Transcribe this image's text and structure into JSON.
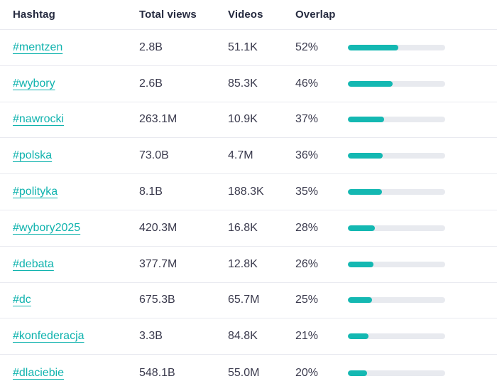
{
  "accent_color": "#14b8b2",
  "track_color": "#e8eaef",
  "table": {
    "columns": [
      {
        "key": "hashtag",
        "label": "Hashtag"
      },
      {
        "key": "views",
        "label": "Total views"
      },
      {
        "key": "videos",
        "label": "Videos"
      },
      {
        "key": "overlap",
        "label": "Overlap"
      }
    ],
    "rows": [
      {
        "hashtag": "#mentzen",
        "views": "2.8B",
        "videos": "51.1K",
        "overlap": "52%",
        "overlap_pct": 52
      },
      {
        "hashtag": "#wybory",
        "views": "2.6B",
        "videos": "85.3K",
        "overlap": "46%",
        "overlap_pct": 46
      },
      {
        "hashtag": "#nawrocki",
        "views": "263.1M",
        "videos": "10.9K",
        "overlap": "37%",
        "overlap_pct": 37
      },
      {
        "hashtag": "#polska",
        "views": "73.0B",
        "videos": "4.7M",
        "overlap": "36%",
        "overlap_pct": 36
      },
      {
        "hashtag": "#polityka",
        "views": "8.1B",
        "videos": "188.3K",
        "overlap": "35%",
        "overlap_pct": 35
      },
      {
        "hashtag": "#wybory2025",
        "views": "420.3M",
        "videos": "16.8K",
        "overlap": "28%",
        "overlap_pct": 28
      },
      {
        "hashtag": "#debata",
        "views": "377.7M",
        "videos": "12.8K",
        "overlap": "26%",
        "overlap_pct": 26
      },
      {
        "hashtag": "#dc",
        "views": "675.3B",
        "videos": "65.7M",
        "overlap": "25%",
        "overlap_pct": 25
      },
      {
        "hashtag": "#konfederacja",
        "views": "3.3B",
        "videos": "84.8K",
        "overlap": "21%",
        "overlap_pct": 21
      },
      {
        "hashtag": "#dlaciebie",
        "views": "548.1B",
        "videos": "55.0M",
        "overlap": "20%",
        "overlap_pct": 20
      }
    ]
  }
}
